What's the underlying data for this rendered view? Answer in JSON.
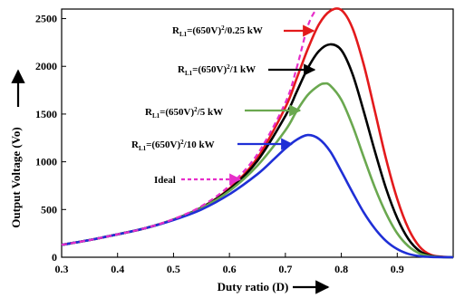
{
  "chart_data": {
    "type": "line",
    "title": "",
    "xlabel": "Duty ratio (D)",
    "ylabel": "Output Voltage (Vo)",
    "xlim": [
      0.3,
      1.0
    ],
    "ylim": [
      0,
      2600
    ],
    "xticks": [
      "0.3",
      "0.4",
      "0.5",
      "0.6",
      "0.7",
      "0.8",
      "0.9"
    ],
    "xtick_values": [
      0.3,
      0.4,
      0.5,
      0.6,
      0.7,
      0.8,
      0.9
    ],
    "yticks": [
      "0",
      "500",
      "1000",
      "1500",
      "2000",
      "2500"
    ],
    "ytick_values": [
      0,
      500,
      1000,
      1500,
      2000,
      2500
    ],
    "grid": false,
    "series": [
      {
        "name": "RL1=(650V)²/0.25 kW",
        "color": "#e31a1c",
        "style": "solid",
        "x": [
          0.3,
          0.35,
          0.4,
          0.45,
          0.5,
          0.55,
          0.6,
          0.65,
          0.7,
          0.72,
          0.74,
          0.76,
          0.78,
          0.8,
          0.82,
          0.84,
          0.86,
          0.88,
          0.9,
          0.92,
          0.94,
          0.96,
          0.98,
          1.0
        ],
        "values": [
          130,
          180,
          240,
          305,
          395,
          520,
          720,
          1040,
          1570,
          1870,
          2180,
          2440,
          2580,
          2590,
          2400,
          2020,
          1530,
          1030,
          610,
          300,
          110,
          25,
          5,
          0
        ]
      },
      {
        "name": "RL1=(650V)²/1 kW",
        "color": "#000000",
        "style": "solid",
        "x": [
          0.3,
          0.35,
          0.4,
          0.45,
          0.5,
          0.55,
          0.6,
          0.65,
          0.7,
          0.72,
          0.74,
          0.76,
          0.78,
          0.8,
          0.82,
          0.84,
          0.86,
          0.88,
          0.9,
          0.92,
          0.94,
          0.96,
          0.98,
          1.0
        ],
        "values": [
          130,
          180,
          240,
          305,
          395,
          520,
          710,
          1010,
          1480,
          1730,
          1980,
          2160,
          2230,
          2170,
          1920,
          1530,
          1110,
          720,
          410,
          190,
          65,
          15,
          3,
          0
        ]
      },
      {
        "name": "RL1=(650V)²/5 kW",
        "color": "#6aa84f",
        "style": "solid",
        "x": [
          0.3,
          0.35,
          0.4,
          0.45,
          0.5,
          0.55,
          0.6,
          0.65,
          0.7,
          0.72,
          0.74,
          0.76,
          0.77,
          0.78,
          0.8,
          0.82,
          0.84,
          0.86,
          0.88,
          0.9,
          0.92,
          0.94,
          0.96,
          0.98,
          1.0
        ],
        "values": [
          130,
          180,
          240,
          305,
          395,
          515,
          695,
          960,
          1330,
          1530,
          1700,
          1800,
          1820,
          1800,
          1650,
          1380,
          1050,
          730,
          460,
          250,
          115,
          40,
          10,
          2,
          0
        ]
      },
      {
        "name": "RL1=(650V)²/10 kW",
        "color": "#1f2fd6",
        "style": "solid",
        "x": [
          0.3,
          0.35,
          0.4,
          0.45,
          0.5,
          0.55,
          0.6,
          0.65,
          0.68,
          0.7,
          0.72,
          0.74,
          0.76,
          0.78,
          0.8,
          0.82,
          0.84,
          0.86,
          0.88,
          0.9,
          0.92,
          0.94,
          0.96,
          1.0
        ],
        "values": [
          130,
          180,
          240,
          305,
          390,
          500,
          660,
          870,
          1030,
          1140,
          1230,
          1280,
          1240,
          1110,
          900,
          680,
          470,
          300,
          170,
          85,
          35,
          12,
          3,
          0
        ]
      },
      {
        "name": "Ideal",
        "color": "#e62ec9",
        "style": "dashed",
        "x": [
          0.3,
          0.35,
          0.4,
          0.45,
          0.5,
          0.55,
          0.6,
          0.65,
          0.7,
          0.72,
          0.74,
          0.755
        ],
        "values": [
          130,
          180,
          240,
          305,
          400,
          535,
          750,
          1080,
          1620,
          1980,
          2420,
          2700
        ]
      }
    ],
    "annotations": [
      {
        "text": "R",
        "sub": "L1",
        "rest": "=(650V)",
        "sup": "2",
        "tail": "/0.25 kW",
        "series": 0
      },
      {
        "text": "R",
        "sub": "L1",
        "rest": "=(650V)",
        "sup": "2",
        "tail": "/1 kW",
        "series": 1
      },
      {
        "text": "R",
        "sub": "L1",
        "rest": "=(650V)",
        "sup": "2",
        "tail": "/5 kW",
        "series": 2
      },
      {
        "text": "R",
        "sub": "L1",
        "rest": "=(650V)",
        "sup": "2",
        "tail": "/10 kW",
        "series": 3
      },
      {
        "text": "Ideal",
        "series": 4
      }
    ]
  }
}
